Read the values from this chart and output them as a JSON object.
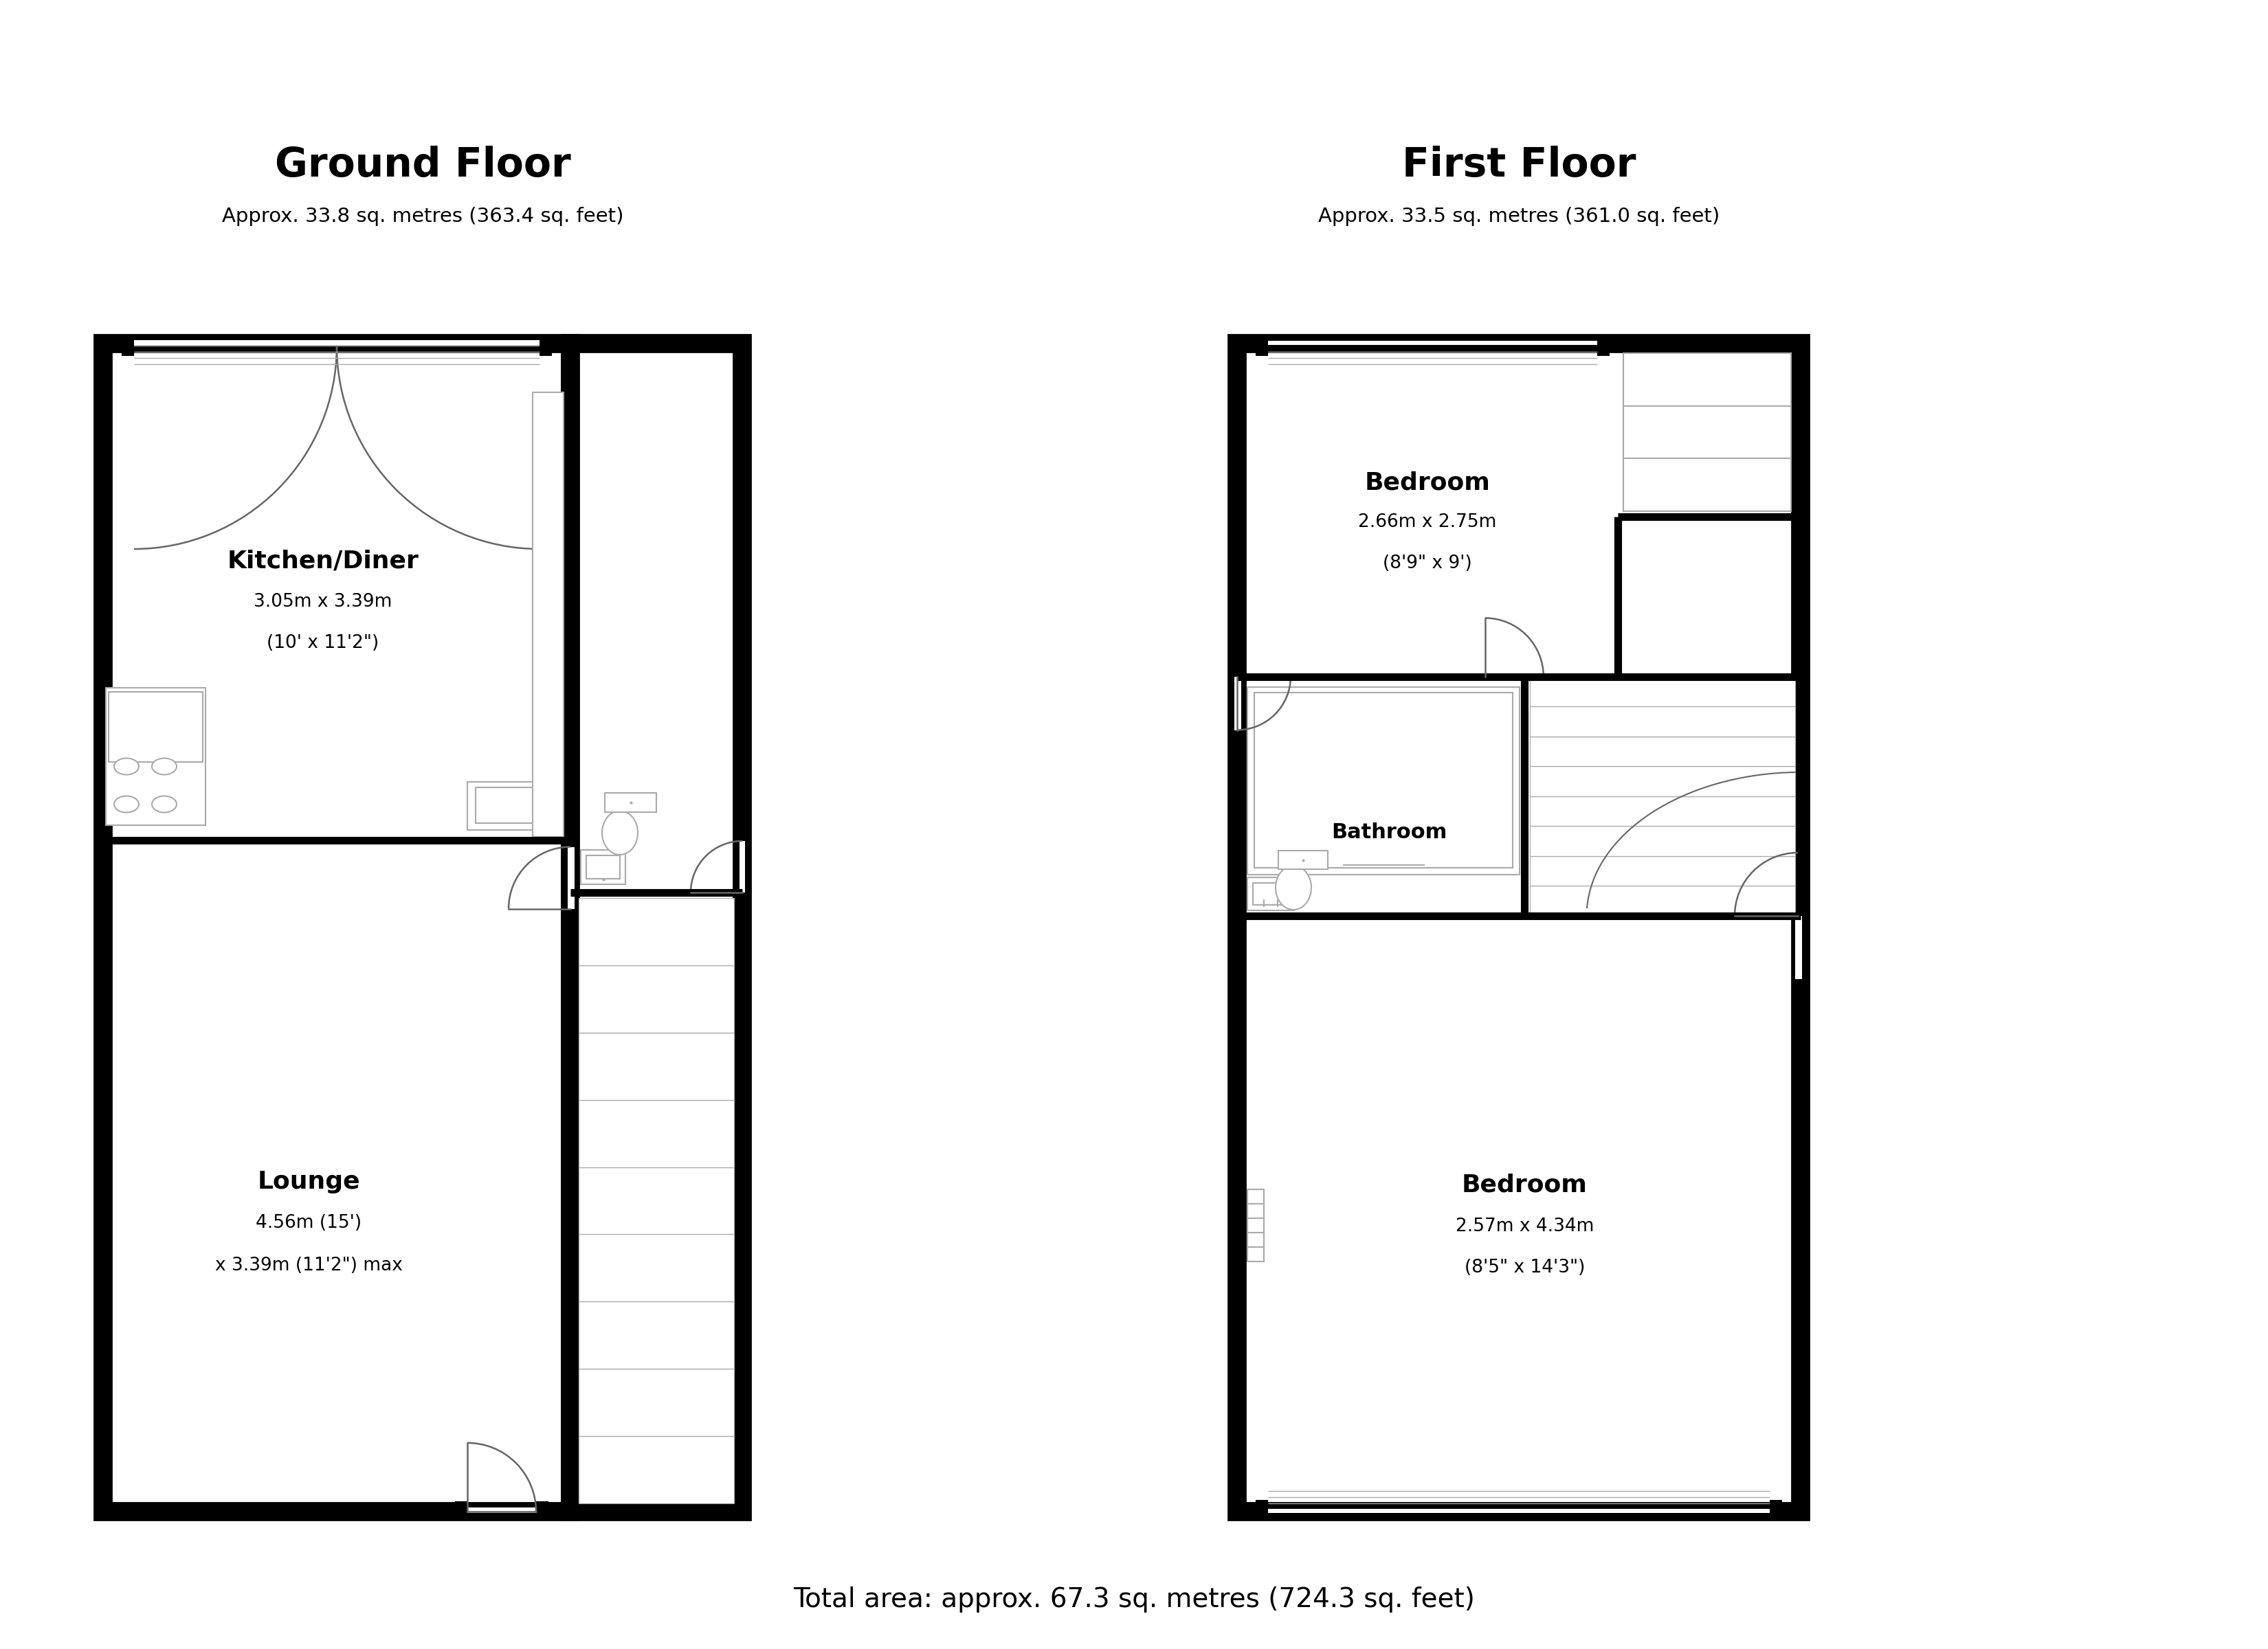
{
  "title_left": "Ground Floor",
  "subtitle_left": "Approx. 33.8 sq. metres (363.4 sq. feet)",
  "title_right": "First Floor",
  "subtitle_right": "Approx. 33.5 sq. metres (361.0 sq. feet)",
  "footer": "Total area: approx. 67.3 sq. metres (724.3 sq. feet)",
  "bg_color": "#ffffff",
  "wall_color": "#000000",
  "line_color": "#666666",
  "thin_color": "#aaaaaa",
  "outer_lw": 20,
  "inner_lw": 8,
  "fixture_lw": 1.5,
  "GX": 1.5,
  "GY": 2.0,
  "GW": 6.8,
  "GH": 17.0,
  "EW": 2.5,
  "FX": 18.0,
  "FY": 2.0,
  "FW": 8.2,
  "FH": 17.0
}
